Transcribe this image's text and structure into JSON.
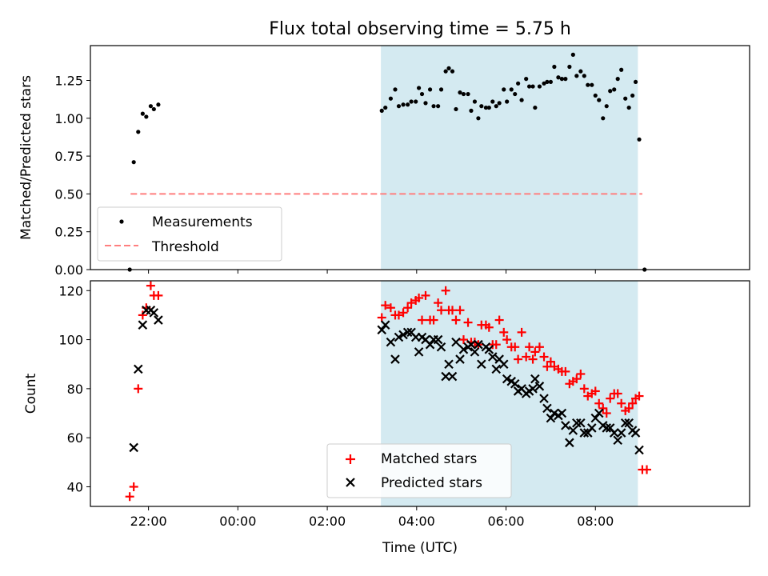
{
  "chart_data": [
    {
      "type": "scatter",
      "title": "Flux total observing time = 5.75 h",
      "xlabel": "",
      "ylabel": "Matched/Predicted stars",
      "ylim": [
        0,
        1.48
      ],
      "xlim_hours": [
        -3.3,
        11.45
      ],
      "yticks": [
        "0.00",
        "0.25",
        "0.50",
        "0.75",
        "1.00",
        "1.25"
      ],
      "ytick_values": [
        0,
        0.25,
        0.5,
        0.75,
        1.0,
        1.25
      ],
      "shaded_span_hours": [
        3.2,
        8.95
      ],
      "shaded_color": "#d4eaf1",
      "legend_position": "lower-left",
      "series": [
        {
          "name": "Measurements",
          "marker": "dot",
          "color": "#000000",
          "points": [
            [
              -2.42,
              0.0
            ],
            [
              -2.33,
              0.71
            ],
            [
              -2.23,
              0.91
            ],
            [
              -2.13,
              1.03
            ],
            [
              -2.05,
              1.01
            ],
            [
              -1.95,
              1.08
            ],
            [
              -1.88,
              1.06
            ],
            [
              -1.78,
              1.09
            ],
            [
              3.22,
              1.05
            ],
            [
              3.3,
              1.07
            ],
            [
              3.42,
              1.13
            ],
            [
              3.52,
              1.19
            ],
            [
              3.6,
              1.08
            ],
            [
              3.7,
              1.09
            ],
            [
              3.8,
              1.09
            ],
            [
              3.88,
              1.11
            ],
            [
              3.98,
              1.11
            ],
            [
              4.05,
              1.2
            ],
            [
              4.12,
              1.16
            ],
            [
              4.2,
              1.1
            ],
            [
              4.3,
              1.19
            ],
            [
              4.38,
              1.08
            ],
            [
              4.48,
              1.08
            ],
            [
              4.55,
              1.19
            ],
            [
              4.65,
              1.31
            ],
            [
              4.72,
              1.33
            ],
            [
              4.8,
              1.31
            ],
            [
              4.88,
              1.06
            ],
            [
              4.97,
              1.17
            ],
            [
              5.05,
              1.16
            ],
            [
              5.15,
              1.16
            ],
            [
              5.22,
              1.05
            ],
            [
              5.3,
              1.11
            ],
            [
              5.38,
              1.0
            ],
            [
              5.45,
              1.08
            ],
            [
              5.55,
              1.07
            ],
            [
              5.62,
              1.07
            ],
            [
              5.7,
              1.11
            ],
            [
              5.78,
              1.08
            ],
            [
              5.85,
              1.1
            ],
            [
              5.95,
              1.19
            ],
            [
              6.02,
              1.11
            ],
            [
              6.12,
              1.19
            ],
            [
              6.2,
              1.16
            ],
            [
              6.27,
              1.23
            ],
            [
              6.35,
              1.12
            ],
            [
              6.45,
              1.26
            ],
            [
              6.52,
              1.21
            ],
            [
              6.6,
              1.21
            ],
            [
              6.65,
              1.07
            ],
            [
              6.75,
              1.21
            ],
            [
              6.85,
              1.23
            ],
            [
              6.92,
              1.24
            ],
            [
              7.0,
              1.24
            ],
            [
              7.08,
              1.34
            ],
            [
              7.17,
              1.27
            ],
            [
              7.25,
              1.26
            ],
            [
              7.33,
              1.26
            ],
            [
              7.42,
              1.34
            ],
            [
              7.5,
              1.42
            ],
            [
              7.58,
              1.28
            ],
            [
              7.67,
              1.31
            ],
            [
              7.75,
              1.28
            ],
            [
              7.83,
              1.22
            ],
            [
              7.92,
              1.22
            ],
            [
              8.0,
              1.15
            ],
            [
              8.08,
              1.12
            ],
            [
              8.17,
              1.0
            ],
            [
              8.25,
              1.08
            ],
            [
              8.33,
              1.18
            ],
            [
              8.42,
              1.19
            ],
            [
              8.5,
              1.26
            ],
            [
              8.58,
              1.32
            ],
            [
              8.67,
              1.13
            ],
            [
              8.75,
              1.07
            ],
            [
              8.83,
              1.15
            ],
            [
              8.9,
              1.24
            ],
            [
              8.98,
              0.86
            ],
            [
              9.1,
              0.0
            ]
          ]
        },
        {
          "name": "Threshold",
          "marker": "dashed-line",
          "color": "#ff7f7f",
          "points": [
            [
              -2.4,
              0.5
            ],
            [
              9.05,
              0.5
            ]
          ]
        }
      ]
    },
    {
      "type": "scatter",
      "title": "",
      "xlabel": "Time (UTC)",
      "ylabel": "Count",
      "ylim": [
        32,
        124
      ],
      "xlim_hours": [
        -3.3,
        11.45
      ],
      "xticks": [
        "22:00",
        "00:00",
        "02:00",
        "04:00",
        "06:00",
        "08:00"
      ],
      "xtick_values_hours": [
        -2,
        0,
        2,
        4,
        6,
        8
      ],
      "yticks": [
        "40",
        "60",
        "80",
        "100",
        "120"
      ],
      "ytick_values": [
        40,
        60,
        80,
        100,
        120
      ],
      "shaded_span_hours": [
        3.2,
        8.95
      ],
      "shaded_color": "#d4eaf1",
      "legend_position": "lower-center",
      "series": [
        {
          "name": "Matched stars",
          "marker": "plus",
          "color": "#ff0000",
          "points": [
            [
              -2.42,
              36
            ],
            [
              -2.33,
              40
            ],
            [
              -2.23,
              80
            ],
            [
              -2.13,
              110
            ],
            [
              -2.05,
              113
            ],
            [
              -1.95,
              122
            ],
            [
              -1.88,
              118
            ],
            [
              -1.78,
              118
            ],
            [
              3.22,
              109
            ],
            [
              3.3,
              114
            ],
            [
              3.42,
              113
            ],
            [
              3.52,
              110
            ],
            [
              3.6,
              110
            ],
            [
              3.7,
              111
            ],
            [
              3.8,
              113
            ],
            [
              3.88,
              115
            ],
            [
              3.98,
              116
            ],
            [
              4.05,
              117
            ],
            [
              4.12,
              108
            ],
            [
              4.2,
              118
            ],
            [
              4.3,
              108
            ],
            [
              4.38,
              108
            ],
            [
              4.48,
              115
            ],
            [
              4.55,
              112
            ],
            [
              4.65,
              120
            ],
            [
              4.72,
              112
            ],
            [
              4.8,
              112
            ],
            [
              4.88,
              108
            ],
            [
              4.97,
              112
            ],
            [
              5.05,
              100
            ],
            [
              5.15,
              107
            ],
            [
              5.22,
              99
            ],
            [
              5.3,
              99
            ],
            [
              5.38,
              98
            ],
            [
              5.45,
              106
            ],
            [
              5.55,
              106
            ],
            [
              5.62,
              105
            ],
            [
              5.7,
              98
            ],
            [
              5.78,
              98
            ],
            [
              5.85,
              108
            ],
            [
              5.95,
              103
            ],
            [
              6.02,
              100
            ],
            [
              6.12,
              97
            ],
            [
              6.2,
              97
            ],
            [
              6.27,
              92
            ],
            [
              6.35,
              103
            ],
            [
              6.45,
              93
            ],
            [
              6.52,
              97
            ],
            [
              6.6,
              92
            ],
            [
              6.65,
              95
            ],
            [
              6.75,
              97
            ],
            [
              6.85,
              93
            ],
            [
              6.92,
              89
            ],
            [
              7.0,
              91
            ],
            [
              7.08,
              89
            ],
            [
              7.17,
              88
            ],
            [
              7.25,
              87
            ],
            [
              7.33,
              87
            ],
            [
              7.42,
              82
            ],
            [
              7.5,
              83
            ],
            [
              7.58,
              84
            ],
            [
              7.67,
              86
            ],
            [
              7.75,
              80
            ],
            [
              7.83,
              77
            ],
            [
              7.92,
              78
            ],
            [
              8.0,
              79
            ],
            [
              8.08,
              74
            ],
            [
              8.17,
              72
            ],
            [
              8.25,
              70
            ],
            [
              8.33,
              76
            ],
            [
              8.42,
              78
            ],
            [
              8.5,
              78
            ],
            [
              8.58,
              74
            ],
            [
              8.67,
              71
            ],
            [
              8.75,
              72
            ],
            [
              8.83,
              74
            ],
            [
              8.9,
              76
            ],
            [
              8.98,
              77
            ],
            [
              9.05,
              47
            ],
            [
              9.15,
              47
            ]
          ]
        },
        {
          "name": "Predicted stars",
          "marker": "x",
          "color": "#000000",
          "points": [
            [
              -2.33,
              56
            ],
            [
              -2.23,
              88
            ],
            [
              -2.13,
              106
            ],
            [
              -2.05,
              112
            ],
            [
              -1.95,
              112
            ],
            [
              -1.88,
              111
            ],
            [
              -1.78,
              108
            ],
            [
              3.22,
              104
            ],
            [
              3.3,
              106
            ],
            [
              3.42,
              99
            ],
            [
              3.52,
              92
            ],
            [
              3.6,
              101
            ],
            [
              3.7,
              102
            ],
            [
              3.8,
              103
            ],
            [
              3.88,
              103
            ],
            [
              3.98,
              101
            ],
            [
              4.05,
              95
            ],
            [
              4.12,
              101
            ],
            [
              4.2,
              100
            ],
            [
              4.3,
              98
            ],
            [
              4.38,
              100
            ],
            [
              4.48,
              100
            ],
            [
              4.55,
              97
            ],
            [
              4.65,
              85
            ],
            [
              4.72,
              90
            ],
            [
              4.8,
              85
            ],
            [
              4.88,
              99
            ],
            [
              4.97,
              92
            ],
            [
              5.05,
              96
            ],
            [
              5.15,
              97
            ],
            [
              5.22,
              98
            ],
            [
              5.3,
              95
            ],
            [
              5.38,
              98
            ],
            [
              5.45,
              90
            ],
            [
              5.55,
              97
            ],
            [
              5.62,
              96
            ],
            [
              5.7,
              93
            ],
            [
              5.78,
              88
            ],
            [
              5.85,
              92
            ],
            [
              5.95,
              90
            ],
            [
              6.02,
              84
            ],
            [
              6.12,
              83
            ],
            [
              6.2,
              82
            ],
            [
              6.27,
              79
            ],
            [
              6.35,
              80
            ],
            [
              6.45,
              78
            ],
            [
              6.52,
              79
            ],
            [
              6.6,
              80
            ],
            [
              6.65,
              84
            ],
            [
              6.75,
              81
            ],
            [
              6.85,
              76
            ],
            [
              6.92,
              72
            ],
            [
              7.0,
              68
            ],
            [
              7.08,
              70
            ],
            [
              7.17,
              69
            ],
            [
              7.25,
              70
            ],
            [
              7.33,
              65
            ],
            [
              7.42,
              58
            ],
            [
              7.5,
              63
            ],
            [
              7.58,
              66
            ],
            [
              7.67,
              66
            ],
            [
              7.75,
              62
            ],
            [
              7.83,
              62
            ],
            [
              7.92,
              64
            ],
            [
              8.0,
              68
            ],
            [
              8.08,
              70
            ],
            [
              8.17,
              65
            ],
            [
              8.25,
              64
            ],
            [
              8.33,
              64
            ],
            [
              8.42,
              62
            ],
            [
              8.5,
              59
            ],
            [
              8.58,
              62
            ],
            [
              8.67,
              66
            ],
            [
              8.75,
              66
            ],
            [
              8.83,
              63
            ],
            [
              8.9,
              62
            ],
            [
              8.98,
              55
            ]
          ]
        }
      ]
    }
  ]
}
